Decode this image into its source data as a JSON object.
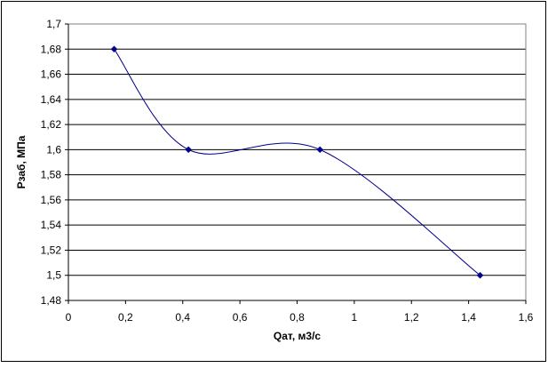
{
  "chart_data": {
    "type": "line",
    "title": "",
    "xlabel": "Qат, м3/с",
    "ylabel": "Pзаб, МПа",
    "xlim": [
      0,
      1.6
    ],
    "ylim": [
      1.48,
      1.7
    ],
    "x_ticks": [
      0,
      0.2,
      0.4,
      0.6,
      0.8,
      1,
      1.2,
      1.4,
      1.6
    ],
    "x_tick_labels": [
      "0",
      "0,2",
      "0,4",
      "0,6",
      "0,8",
      "1",
      "1,2",
      "1,4",
      "1,6"
    ],
    "y_ticks": [
      1.48,
      1.5,
      1.52,
      1.54,
      1.56,
      1.58,
      1.6,
      1.62,
      1.64,
      1.66,
      1.68,
      1.7
    ],
    "y_tick_labels": [
      "1,48",
      "1,5",
      "1,52",
      "1,54",
      "1,56",
      "1,58",
      "1,6",
      "1,62",
      "1,64",
      "1,66",
      "1,68",
      "1,7"
    ],
    "grid": "horizontal",
    "smooth": true,
    "series": [
      {
        "x": [
          0.16,
          0.42,
          0.88,
          1.44
        ],
        "y": [
          1.68,
          1.6,
          1.6,
          1.5
        ],
        "color": "#00008B",
        "marker": "diamond"
      }
    ]
  }
}
